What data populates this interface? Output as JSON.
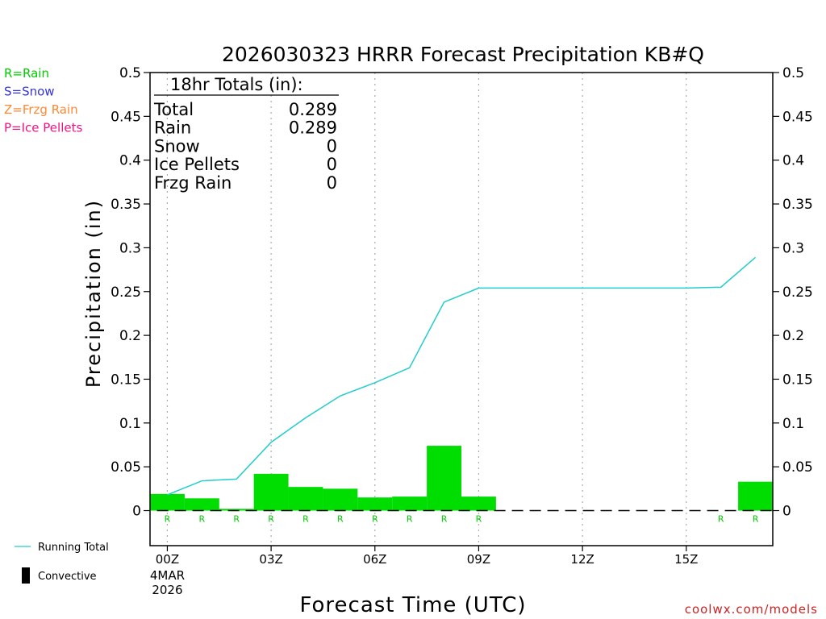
{
  "title": "2026030323 HRRR Forecast Precipitation KB#Q",
  "ptype_legend": [
    {
      "label": "R=Rain",
      "color": "#00cc00"
    },
    {
      "label": "S=Snow",
      "color": "#3333dd"
    },
    {
      "label": "Z=Frzg Rain",
      "color": "#ff8833"
    },
    {
      "label": "P=Ice Pellets",
      "color": "#ee1188"
    }
  ],
  "totals": {
    "header": "18hr Totals (in):",
    "rows": [
      {
        "label": "Total",
        "value": "0.289"
      },
      {
        "label": "Rain",
        "value": "0.289"
      },
      {
        "label": "Snow",
        "value": "0"
      },
      {
        "label": "Ice Pellets",
        "value": "0"
      },
      {
        "label": "Frzg Rain",
        "value": "0"
      }
    ]
  },
  "series_legend": {
    "running_total": "Running Total",
    "convective": "Convective"
  },
  "credit": "coolwx.com/models",
  "chart_data": {
    "type": "bar",
    "title": "2026030323 HRRR Forecast Precipitation KB#Q",
    "xlabel": "Forecast Time (UTC)",
    "ylabel": "Precipitation (in)",
    "ylim": [
      -0.04,
      0.5
    ],
    "yticks": [
      0,
      0.05,
      0.1,
      0.15,
      0.2,
      0.25,
      0.3,
      0.35,
      0.4,
      0.45,
      0.5
    ],
    "ytick_labels": [
      "0",
      "0.05",
      "0.1",
      "0.15",
      "0.2",
      "0.25",
      "0.3",
      "0.35",
      "0.4",
      "0.45",
      "0.5"
    ],
    "xlim": [
      -0.5,
      17.5
    ],
    "xticks": [
      {
        "hour": 0,
        "label": "00Z",
        "sub": [
          "4MAR",
          "2026"
        ]
      },
      {
        "hour": 3,
        "label": "03Z"
      },
      {
        "hour": 6,
        "label": "06Z"
      },
      {
        "hour": 9,
        "label": "09Z"
      },
      {
        "hour": 12,
        "label": "12Z"
      },
      {
        "hour": 15,
        "label": "15Z"
      }
    ],
    "hours": [
      0,
      1,
      2,
      3,
      4,
      5,
      6,
      7,
      8,
      9,
      10,
      11,
      12,
      13,
      14,
      15,
      16,
      17
    ],
    "hourly_precip": [
      0.019,
      0.014,
      0.002,
      0.042,
      0.027,
      0.025,
      0.015,
      0.016,
      0.074,
      0.016,
      0,
      0,
      0,
      0,
      0,
      0,
      0,
      0.033
    ],
    "running_total": [
      0.018,
      0.034,
      0.036,
      0.078,
      0.106,
      0.131,
      0.146,
      0.163,
      0.238,
      0.254,
      0.254,
      0.254,
      0.254,
      0.254,
      0.254,
      0.254,
      0.255,
      0.289
    ],
    "ptype_labels": [
      "R",
      "R",
      "R",
      "R",
      "R",
      "R",
      "R",
      "R",
      "R",
      "R",
      "",
      "",
      "",
      "",
      "",
      "",
      "R",
      "R"
    ],
    "colors": {
      "bar": "#00dd00",
      "line": "#22cccc",
      "grid": "#aaaaaa"
    }
  }
}
